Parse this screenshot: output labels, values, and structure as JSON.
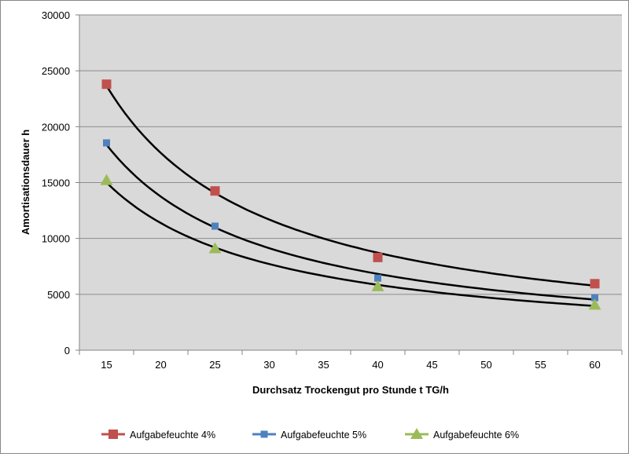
{
  "chart_data": {
    "type": "scatter",
    "title": "",
    "xlabel": "Durchsatz Trockengut pro Stunde t TG/h",
    "ylabel": "Amortisationsdauer h",
    "x_ticks": [
      15,
      20,
      25,
      30,
      35,
      40,
      45,
      50,
      55,
      60
    ],
    "y_ticks": [
      0,
      5000,
      10000,
      15000,
      20000,
      25000,
      30000
    ],
    "ylim": [
      0,
      30000
    ],
    "grid": "horizontal",
    "legend_position": "bottom",
    "trendline": "power",
    "x": [
      15,
      25,
      40,
      60
    ],
    "series": [
      {
        "name": "Aufgabefeuchte 4%",
        "marker": "square",
        "color": "#c0504d",
        "values": [
          23800,
          14250,
          8300,
          5950
        ]
      },
      {
        "name": "Aufgabefeuchte 5%",
        "marker": "square-small",
        "color": "#4f81bd",
        "values": [
          18550,
          11100,
          6450,
          4700
        ]
      },
      {
        "name": "Aufgabefeuchte 6%",
        "marker": "triangle",
        "color": "#9bbb59",
        "values": [
          15200,
          9100,
          5700,
          4050
        ]
      }
    ]
  }
}
